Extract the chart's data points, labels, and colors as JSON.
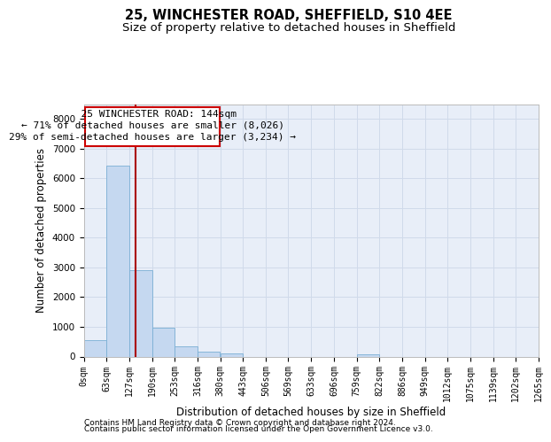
{
  "title1": "25, WINCHESTER ROAD, SHEFFIELD, S10 4EE",
  "title2": "Size of property relative to detached houses in Sheffield",
  "xlabel": "Distribution of detached houses by size in Sheffield",
  "ylabel": "Number of detached properties",
  "bar_color": "#c5d8f0",
  "bar_edge_color": "#7aafd4",
  "grid_color": "#d0daea",
  "bg_color": "#e8eef8",
  "annotation_box_color": "#cc0000",
  "vline_color": "#aa0000",
  "property_label": "25 WINCHESTER ROAD: 144sqm",
  "pct_smaller": "71% of detached houses are smaller (8,026)",
  "pct_larger": "29% of semi-detached houses are larger (3,234)",
  "bin_edges": [
    0,
    63,
    127,
    190,
    253,
    316,
    380,
    443,
    506,
    569,
    633,
    696,
    759,
    822,
    886,
    949,
    1012,
    1075,
    1139,
    1202,
    1265
  ],
  "bin_labels": [
    "0sqm",
    "63sqm",
    "127sqm",
    "190sqm",
    "253sqm",
    "316sqm",
    "380sqm",
    "443sqm",
    "506sqm",
    "569sqm",
    "633sqm",
    "696sqm",
    "759sqm",
    "822sqm",
    "886sqm",
    "949sqm",
    "1012sqm",
    "1075sqm",
    "1139sqm",
    "1202sqm",
    "1265sqm"
  ],
  "bar_heights": [
    550,
    6430,
    2920,
    980,
    340,
    170,
    100,
    0,
    0,
    0,
    0,
    0,
    60,
    0,
    0,
    0,
    0,
    0,
    0,
    0
  ],
  "vline_x": 144,
  "ylim": [
    0,
    8500
  ],
  "yticks": [
    0,
    1000,
    2000,
    3000,
    4000,
    5000,
    6000,
    7000,
    8000
  ],
  "footer1": "Contains HM Land Registry data © Crown copyright and database right 2024.",
  "footer2": "Contains public sector information licensed under the Open Government Licence v3.0.",
  "title1_fontsize": 10.5,
  "title2_fontsize": 9.5,
  "axis_label_fontsize": 8.5,
  "tick_fontsize": 7,
  "footer_fontsize": 6.5,
  "ann_fontsize": 8
}
